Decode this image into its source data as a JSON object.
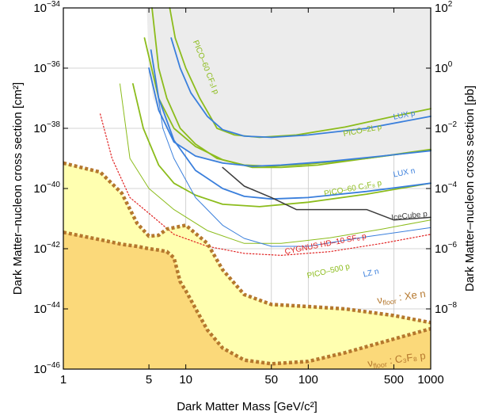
{
  "chart_data": {
    "type": "line",
    "xlabel": "Dark Matter Mass [GeV/c²]",
    "ylabel_left": "Dark Matter–nucleon cross section [cm²]",
    "ylabel_right": "Dark Matter–nucleon cross section [pb]",
    "x_scale": "log",
    "y_scale": "log",
    "xlim": [
      1,
      1000
    ],
    "ylim": [
      1e-46,
      1e-34
    ],
    "grid": true,
    "x_ticks": [
      {
        "value": 1,
        "label": "1"
      },
      {
        "value": 5,
        "label": "5"
      },
      {
        "value": 10,
        "label": "10"
      },
      {
        "value": 50,
        "label": "50"
      },
      {
        "value": 100,
        "label": "100"
      },
      {
        "value": 500,
        "label": "500"
      },
      {
        "value": 1000,
        "label": "1000"
      }
    ],
    "y_ticks_left": [
      {
        "value": 1e-34,
        "base": "10",
        "exp": "−34"
      },
      {
        "value": 1e-36,
        "base": "10",
        "exp": "−36"
      },
      {
        "value": 1e-38,
        "base": "10",
        "exp": "−38"
      },
      {
        "value": 1e-40,
        "base": "10",
        "exp": "−40"
      },
      {
        "value": 1e-42,
        "base": "10",
        "exp": "−42"
      },
      {
        "value": 1e-44,
        "base": "10",
        "exp": "−44"
      },
      {
        "value": 1e-46,
        "base": "10",
        "exp": "−46"
      }
    ],
    "y_ticks_right": [
      {
        "value": 1e-34,
        "base": "10",
        "exp": "2"
      },
      {
        "value": 1e-36,
        "base": "10",
        "exp": "0"
      },
      {
        "value": 1e-38,
        "base": "10",
        "exp": "−2"
      },
      {
        "value": 1e-40,
        "base": "10",
        "exp": "−4"
      },
      {
        "value": 1e-42,
        "base": "10",
        "exp": "−6"
      },
      {
        "value": 1e-44,
        "base": "10",
        "exp": "−8"
      }
    ],
    "colors": {
      "excluded_region": "#ececec",
      "floor_xe": "#ffffb0",
      "floor_c3f8": "#fbd97a",
      "floor_line": "#b5782e",
      "pico": "#8cbc1c",
      "lux": "#3a7fdc",
      "icecube": "#3c3c3c",
      "cygnus": "#e02020"
    },
    "series": [
      {
        "id": "pico60-cf3i",
        "name": "PICO–60 CF₃I p",
        "color": "#8cbc1c",
        "style": "solid",
        "width": 1.8,
        "points": [
          [
            7.4,
            1e-34
          ],
          [
            8.2,
            1e-35
          ],
          [
            10,
            1e-36
          ],
          [
            13,
            1e-37
          ],
          [
            18,
            1e-38
          ],
          [
            25,
            6e-39
          ],
          [
            40,
            5e-39
          ],
          [
            80,
            6e-39
          ],
          [
            200,
            1.1e-38
          ],
          [
            500,
            2.5e-38
          ],
          [
            1000,
            4.5e-38
          ]
        ]
      },
      {
        "id": "pico2l",
        "name": "PICO–2L p",
        "color": "#8cbc1c",
        "style": "solid",
        "width": 1.8,
        "points": [
          [
            5.3,
            1e-34
          ],
          [
            6,
            1e-36
          ],
          [
            7,
            1e-37
          ],
          [
            9,
            1e-38
          ],
          [
            12,
            3e-39
          ],
          [
            18,
            1e-39
          ],
          [
            30,
            6e-40
          ],
          [
            50,
            5.5e-40
          ],
          [
            100,
            6.5e-40
          ],
          [
            300,
            1e-39
          ],
          [
            1000,
            2e-39
          ]
        ]
      },
      {
        "id": "pico60-c3f8-upper",
        "name": "",
        "color": "#8cbc1c",
        "style": "solid",
        "width": 1.8,
        "points": [
          [
            4.6,
            1e-35
          ],
          [
            6,
            1e-37
          ],
          [
            8,
            1e-38
          ],
          [
            12,
            2.5e-39
          ],
          [
            20,
            9e-40
          ],
          [
            35,
            5e-40
          ],
          [
            60,
            5e-40
          ],
          [
            120,
            6e-40
          ],
          [
            300,
            1e-39
          ],
          [
            1000,
            1.9e-39
          ]
        ]
      },
      {
        "id": "pico60-c3f8",
        "name": "PICO–60 C₃F₈ p",
        "color": "#8cbc1c",
        "style": "solid",
        "width": 1.8,
        "points": [
          [
            3.7,
            3e-37
          ],
          [
            4.5,
            1e-38
          ],
          [
            6,
            6e-40
          ],
          [
            8,
            1.5e-40
          ],
          [
            12,
            6e-41
          ],
          [
            20,
            3e-41
          ],
          [
            40,
            2.5e-41
          ],
          [
            100,
            3.5e-41
          ],
          [
            300,
            6.5e-41
          ],
          [
            1000,
            1.5e-40
          ]
        ]
      },
      {
        "id": "pico500",
        "name": "PICO–500 p",
        "color": "#8cbc1c",
        "style": "solid",
        "width": 1.0,
        "points": [
          [
            2.9,
            3e-37
          ],
          [
            3.5,
            1e-39
          ],
          [
            5,
            1e-40
          ],
          [
            8,
            2e-41
          ],
          [
            15,
            4e-42
          ],
          [
            30,
            1.5e-42
          ],
          [
            60,
            1.5e-42
          ],
          [
            150,
            2.3e-42
          ],
          [
            400,
            4.5e-42
          ],
          [
            1000,
            9e-42
          ]
        ]
      },
      {
        "id": "lux-p",
        "name": "LUX p",
        "color": "#3a7fdc",
        "style": "solid",
        "width": 1.8,
        "points": [
          [
            7.6,
            1e-35
          ],
          [
            9,
            1e-36
          ],
          [
            11,
            1.5e-37
          ],
          [
            15,
            2.5e-38
          ],
          [
            20,
            9e-39
          ],
          [
            30,
            5.5e-39
          ],
          [
            50,
            5e-39
          ],
          [
            100,
            6e-39
          ],
          [
            300,
            1e-38
          ],
          [
            1000,
            2.5e-38
          ]
        ]
      },
      {
        "id": "lux-p-lower",
        "name": "",
        "color": "#3a7fdc",
        "style": "solid",
        "width": 1.8,
        "points": [
          [
            5,
            1e-36
          ],
          [
            6,
            4e-38
          ],
          [
            8,
            3.5e-39
          ],
          [
            12,
            1.2e-39
          ],
          [
            20,
            7e-40
          ],
          [
            35,
            5.5e-40
          ],
          [
            60,
            6e-40
          ],
          [
            150,
            8e-40
          ],
          [
            400,
            1.2e-39
          ],
          [
            1000,
            1.8e-39
          ]
        ]
      },
      {
        "id": "lux-n",
        "name": "LUX n",
        "color": "#3a7fdc",
        "style": "solid",
        "width": 1.8,
        "points": [
          [
            5.2,
            4e-36
          ],
          [
            6,
            1e-37
          ],
          [
            8,
            4e-39
          ],
          [
            12,
            4e-40
          ],
          [
            20,
            1e-40
          ],
          [
            30,
            5.5e-41
          ],
          [
            50,
            4.5e-41
          ],
          [
            100,
            5e-41
          ],
          [
            300,
            8e-41
          ],
          [
            1000,
            1.5e-40
          ]
        ]
      },
      {
        "id": "lz-n",
        "name": "LZ n",
        "color": "#3a7fdc",
        "style": "solid",
        "width": 1.0,
        "points": [
          [
            5.5,
            1e-36
          ],
          [
            6.5,
            1e-38
          ],
          [
            8,
            1e-39
          ],
          [
            12,
            5e-41
          ],
          [
            20,
            6e-42
          ],
          [
            30,
            2.2e-42
          ],
          [
            50,
            1.2e-42
          ],
          [
            100,
            1.2e-42
          ],
          [
            300,
            2.5e-42
          ],
          [
            1000,
            5e-42
          ]
        ]
      },
      {
        "id": "icecube",
        "name": "IceCube p",
        "color": "#3c3c3c",
        "style": "solid",
        "width": 1.5,
        "points": [
          [
            20,
            5e-40
          ],
          [
            30,
            1.2e-40
          ],
          [
            50,
            5e-41
          ],
          [
            80,
            2e-41
          ],
          [
            150,
            2e-41
          ],
          [
            300,
            2e-41
          ],
          [
            500,
            9e-42
          ],
          [
            1000,
            1.1e-41
          ]
        ]
      },
      {
        "id": "cygnus",
        "name": "CYGNUS HD–10 SF₆ p",
        "color": "#e02020",
        "style": "dotted",
        "width": 1.2,
        "points": [
          [
            2,
            3e-38
          ],
          [
            2.5,
            1e-39
          ],
          [
            3.5,
            5e-41
          ],
          [
            5,
            1.5e-41
          ],
          [
            8,
            3e-42
          ],
          [
            15,
            1.2e-42
          ],
          [
            30,
            7e-43
          ],
          [
            60,
            6e-43
          ],
          [
            150,
            8e-43
          ],
          [
            400,
            1.5e-42
          ],
          [
            1000,
            3e-42
          ]
        ]
      }
    ],
    "floors": [
      {
        "id": "floor-xe",
        "name": "ν_floor : Xe n",
        "prefix": "ν",
        "sub": "floor",
        "suffix": ": Xe n",
        "points": [
          [
            1,
            7e-40
          ],
          [
            2,
            3.5e-40
          ],
          [
            3,
            7e-41
          ],
          [
            4,
            7e-42
          ],
          [
            5,
            2.6e-42
          ],
          [
            6,
            2.8e-42
          ],
          [
            7,
            4.5e-42
          ],
          [
            10,
            6e-42
          ],
          [
            15,
            1.5e-42
          ],
          [
            20,
            2e-43
          ],
          [
            30,
            3e-44
          ],
          [
            50,
            1.4e-44
          ],
          [
            100,
            1.2e-44
          ],
          [
            200,
            1e-44
          ],
          [
            500,
            6e-45
          ],
          [
            1000,
            3.5e-45
          ]
        ]
      },
      {
        "id": "floor-c3f8",
        "name": "ν_floor : C₃F₈ p",
        "prefix": "ν",
        "sub": "floor",
        "suffix": ": C₃F₈ p",
        "points": [
          [
            1,
            3.5e-42
          ],
          [
            2,
            2e-42
          ],
          [
            3,
            1.4e-42
          ],
          [
            4,
            1.2e-42
          ],
          [
            5,
            1e-42
          ],
          [
            6,
            9e-43
          ],
          [
            7,
            8e-43
          ],
          [
            8,
            5e-43
          ],
          [
            9,
            8e-44
          ],
          [
            10,
            4e-44
          ],
          [
            15,
            2e-45
          ],
          [
            20,
            5e-46
          ],
          [
            30,
            2e-46
          ],
          [
            50,
            1.5e-46
          ],
          [
            100,
            1.8e-46
          ],
          [
            200,
            3.5e-46
          ],
          [
            500,
            1e-45
          ],
          [
            1000,
            2.2e-45
          ]
        ]
      }
    ],
    "labels": [
      {
        "text": "PICO–60 CF₃I p",
        "color": "#8cbc1c",
        "x": 14,
        "y": 1e-36,
        "rotate": 68,
        "anchor": "middle"
      },
      {
        "text": "PICO–2L p",
        "color": "#8cbc1c",
        "x": 400,
        "y": 9.5e-39,
        "rotate": -11,
        "anchor": "end"
      },
      {
        "text": "LUX p",
        "color": "#3a7fdc",
        "x": 750,
        "y": 2.7e-38,
        "rotate": -11,
        "anchor": "end"
      },
      {
        "text": "PICO–60 C₃F₈ p",
        "color": "#8cbc1c",
        "x": 400,
        "y": 1.3e-40,
        "rotate": -11,
        "anchor": "end"
      },
      {
        "text": "LUX n",
        "color": "#3a7fdc",
        "x": 750,
        "y": 3.3e-40,
        "rotate": -11,
        "anchor": "end"
      },
      {
        "text": "IceCube p",
        "color": "#3c3c3c",
        "x": 980,
        "y": 1.2e-41,
        "rotate": -6,
        "anchor": "end"
      },
      {
        "text": "CYGNUS HD–10 SF₆ p",
        "color": "#e02020",
        "x": 300,
        "y": 2.2e-42,
        "rotate": -11,
        "anchor": "end"
      },
      {
        "text": "PICO–500 p",
        "color": "#8cbc1c",
        "x": 220,
        "y": 2.2e-43,
        "rotate": -13,
        "anchor": "end"
      },
      {
        "text": "LZ n",
        "color": "#3a7fdc",
        "x": 380,
        "y": 1.5e-43,
        "rotate": -13,
        "anchor": "end"
      }
    ]
  }
}
